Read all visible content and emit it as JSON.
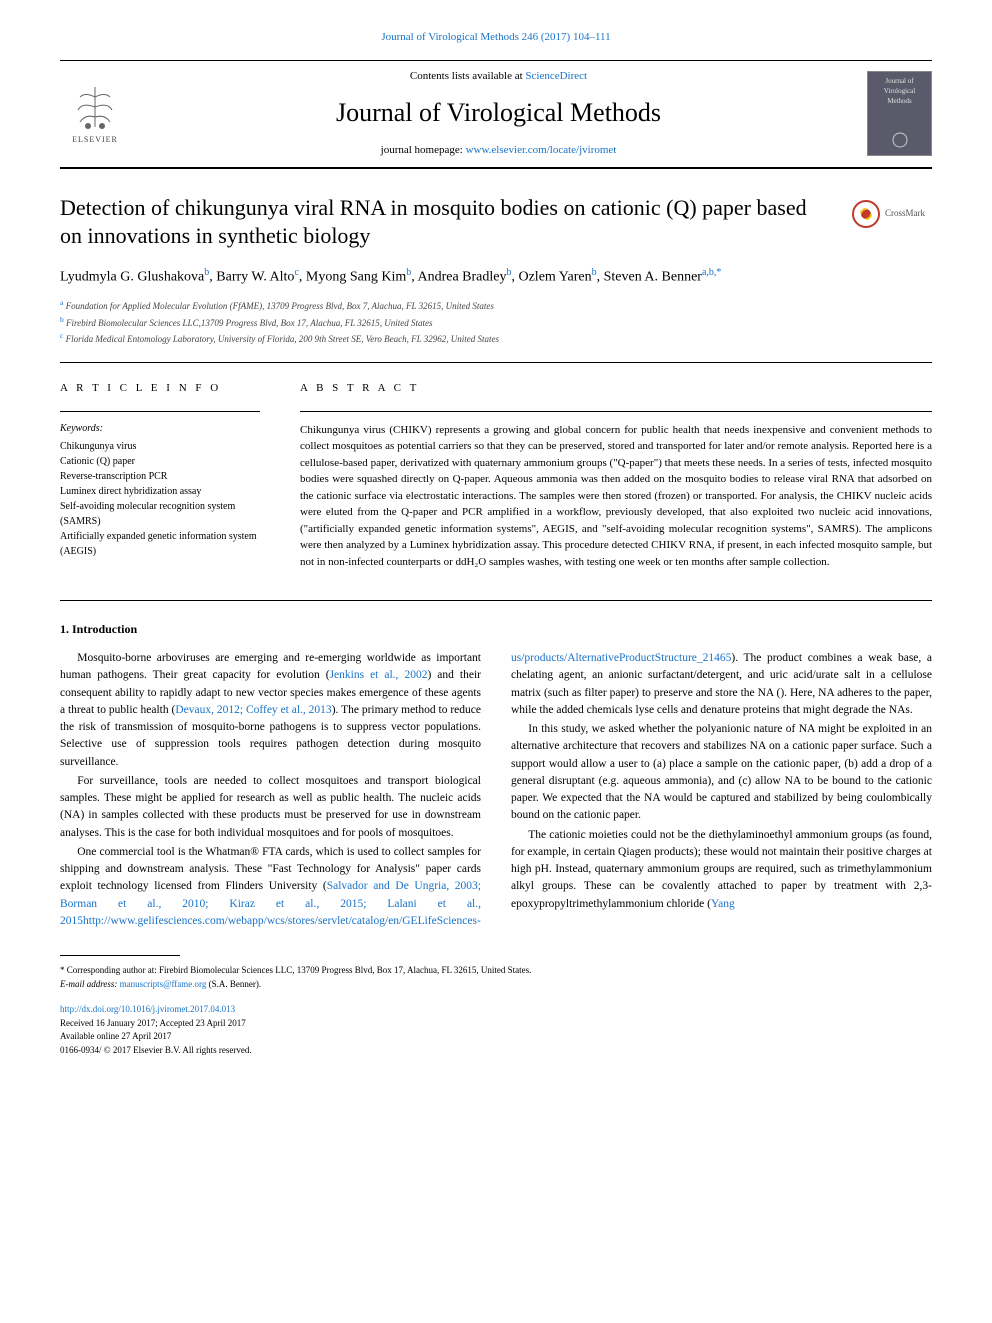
{
  "top_link": "Journal of Virological Methods 246 (2017) 104–111",
  "header": {
    "contents_prefix": "Contents lists available at ",
    "contents_link": "ScienceDirect",
    "journal_name": "Journal of Virological Methods",
    "homepage_prefix": "journal homepage: ",
    "homepage_link": "www.elsevier.com/locate/jviromet",
    "elsevier_label": "ELSEVIER",
    "cover_text": "Journal of Virological Methods"
  },
  "title": "Detection of chikungunya viral RNA in mosquito bodies on cationic (Q) paper based on innovations in synthetic biology",
  "crossmark_label": "CrossMark",
  "authors_html": "Lyudmyla G. Glushakova|b|, Barry W. Alto|c|, Myong Sang Kim|b|, Andrea Bradley|b|, Ozlem Yaren|b|, Steven A. Benner|a,b,*|",
  "affiliations": [
    {
      "sup": "a",
      "text": "Foundation for Applied Molecular Evolution (FfAME), 13709 Progress Blvd, Box 7, Alachua, FL 32615, United States"
    },
    {
      "sup": "b",
      "text": "Firebird Biomolecular Sciences LLC,13709 Progress Blvd, Box 17, Alachua, FL 32615, United States"
    },
    {
      "sup": "c",
      "text": "Florida Medical Entomology Laboratory, University of Florida, 200 9th Street SE, Vero Beach, FL 32962, United States"
    }
  ],
  "article_info_heading": "A R T I C L E  I N F O",
  "keywords_label": "Keywords:",
  "keywords": [
    "Chikungunya virus",
    "Cationic (Q) paper",
    "Reverse-transcription PCR",
    "Luminex direct hybridization assay",
    "Self-avoiding molecular recognition system (SAMRS)",
    "Artificially expanded genetic information system (AEGIS)"
  ],
  "abstract_heading": "A B S T R A C T",
  "abstract": "Chikungunya virus (CHIKV) represents a growing and global concern for public health that needs inexpensive and convenient methods to collect mosquitoes as potential carriers so that they can be preserved, stored and transported for later and/or remote analysis. Reported here is a cellulose-based paper, derivatized with quaternary ammonium groups (\"Q-paper\") that meets these needs. In a series of tests, infected mosquito bodies were squashed directly on Q-paper. Aqueous ammonia was then added on the mosquito bodies to release viral RNA that adsorbed on the cationic surface via electrostatic interactions. The samples were then stored (frozen) or transported. For analysis, the CHIKV nucleic acids were eluted from the Q-paper and PCR amplified in a workflow, previously developed, that also exploited two nucleic acid innovations, (\"artificially expanded genetic information systems\", AEGIS, and \"self-avoiding molecular recognition systems\", SAMRS). The amplicons were then analyzed by a Luminex hybridization assay. This procedure detected CHIKV RNA, if present, in each infected mosquito sample, but not in non-infected counterparts or ddH₂O samples washes, with testing one week or ten months after sample collection.",
  "intro_heading": "1. Introduction",
  "intro_paragraphs": [
    {
      "text": "Mosquito-borne arboviruses are emerging and re-emerging worldwide as important human pathogens. Their great capacity for evolution (",
      "link1": "Jenkins et al., 2002",
      "mid1": ") and their consequent ability to rapidly adapt to new vector species makes emergence of these agents a threat to public health (",
      "link2": "Devaux, 2012; Coffey et al., 2013",
      "end": "). The primary method to reduce the risk of transmission of mosquito-borne pathogens is to suppress vector populations. Selective use of suppression tools requires pathogen detection during mosquito surveillance."
    },
    {
      "text": "For surveillance, tools are needed to collect mosquitoes and transport biological samples. These might be applied for research as well as public health. The nucleic acids (NA) in samples collected with these products must be preserved for use in downstream analyses. This is the case for both individual mosquitoes and for pools of mosquitoes."
    },
    {
      "text": "One commercial tool is the Whatman® FTA cards, which is used to collect samples for shipping and downstream analysis. These \"Fast Technology for Analysis\" paper cards exploit technology licensed from Flinders University (",
      "link1": "Salvador and De Ungria, 2003; Borman et al., 2010; Kiraz et al., 2015; Lalani et al., 2015",
      "end": "). The product combines a weak base, a chelating agent, an anionic surfactant/detergent, and uric acid/urate salt in a cellulose matrix (such as filter paper) to preserve and store the NA (",
      "link2": "http://www.gelifesciences.com/webapp/wcs/stores/servlet/catalog/en/GELifeSciences-us/products/AlternativeProductStructure_21465",
      "end2": "). Here, NA adheres to the paper, while the added chemicals lyse cells and denature proteins that might degrade the NAs."
    },
    {
      "text": "In this study, we asked whether the polyanionic nature of NA might be exploited in an alternative architecture that recovers and stabilizes NA on a cationic paper surface. Such a support would allow a user to (a) place a sample on the cationic paper, (b) add a drop of a general disruptant (e.g. aqueous ammonia), and (c) allow NA to be bound to the cationic paper. We expected that the NA would be captured and stabilized by being coulombically bound on the cationic paper."
    },
    {
      "text": "The cationic moieties could not be the diethylaminoethyl ammonium groups (as found, for example, in certain Qiagen products); these would not maintain their positive charges at high pH. Instead, quaternary ammonium groups are required, such as trimethylammonium alkyl groups. These can be covalently attached to paper by treatment with 2,3-epoxypropyltrimethylammonium chloride (",
      "link1": "Yang",
      "end": ""
    }
  ],
  "footer": {
    "corresponding": "* Corresponding author at: Firebird Biomolecular Sciences LLC, 13709 Progress Blvd, Box 17, Alachua, FL 32615, United States.",
    "email_label": "E-mail address: ",
    "email": "manuscripts@ffame.org",
    "email_suffix": " (S.A. Benner).",
    "doi": "http://dx.doi.org/10.1016/j.jviromet.2017.04.013",
    "received": "Received 16 January 2017; Accepted 23 April 2017",
    "available": "Available online 27 April 2017",
    "copyright": "0166-0934/ © 2017 Elsevier B.V. All rights reserved."
  },
  "colors": {
    "link": "#1a73c8",
    "text": "#000000",
    "elsevier_orange": "#ff6b00",
    "cover_bg": "#5a5a6a"
  }
}
